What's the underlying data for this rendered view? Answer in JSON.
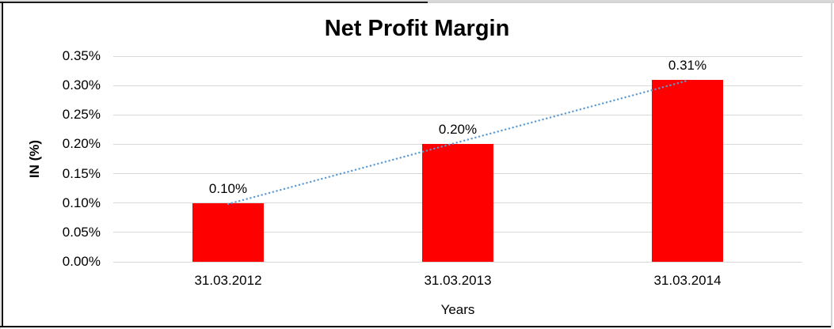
{
  "chart_data": {
    "type": "bar",
    "title": "Net Profit Margin",
    "xlabel": "Years",
    "ylabel": "IN (%)",
    "categories": [
      "31.03.2012",
      "31.03.2013",
      "31.03.2014"
    ],
    "values": [
      0.1,
      0.2,
      0.31
    ],
    "value_labels": [
      "0.10%",
      "0.20%",
      "0.31%"
    ],
    "ylim": [
      0,
      0.35
    ],
    "ytick_step": 0.05,
    "ytick_labels": [
      "0.00%",
      "0.05%",
      "0.10%",
      "0.15%",
      "0.20%",
      "0.25%",
      "0.30%",
      "0.35%"
    ],
    "grid": true,
    "legend": "none",
    "colors": {
      "bar": "#ff0000",
      "trendline": "#5b9bd5",
      "gridline": "#d9d9d9",
      "text": "#000000"
    },
    "trendline": {
      "type": "linear",
      "style": "dotted"
    }
  }
}
